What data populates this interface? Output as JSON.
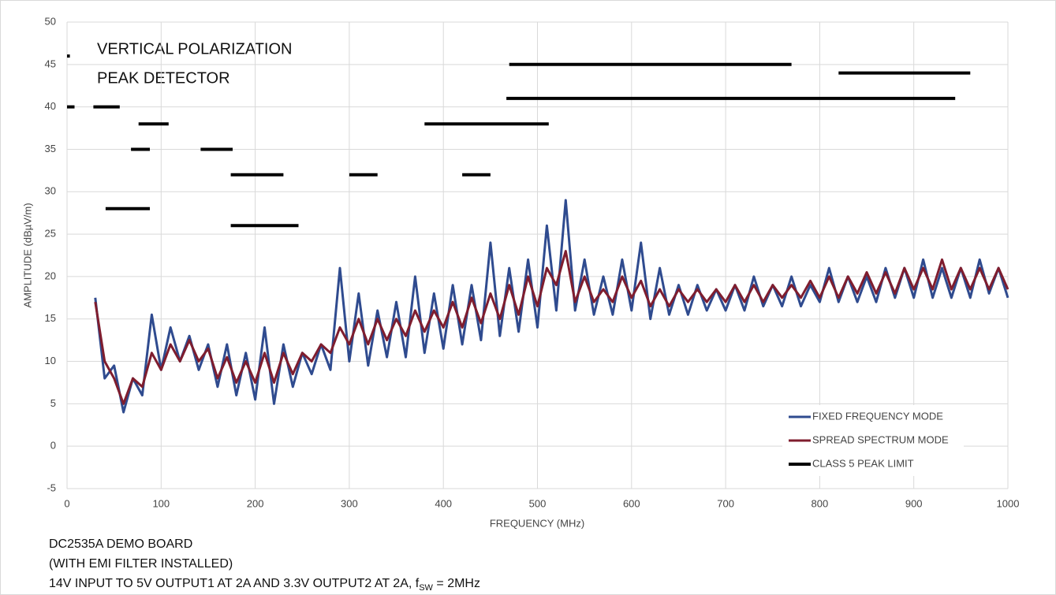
{
  "chart_data": {
    "type": "line",
    "annotation": [
      "VERTICAL POLARIZATION",
      "PEAK DETECTOR"
    ],
    "xlabel": "FREQUENCY (MHz)",
    "ylabel": "AMPLITUDE (dBµV/m)",
    "notes": [
      "DC2535A DEMO BOARD",
      "(WITH EMI FILTER INSTALLED)"
    ],
    "note_last": [
      "14V INPUT TO 5V OUTPUT1 AT 2A AND 3.3V OUTPUT2 AT 2A, f",
      "SW",
      " = 2MHz"
    ],
    "xlim": [
      0,
      1000
    ],
    "xticks": [
      0,
      100,
      200,
      300,
      400,
      500,
      600,
      700,
      800,
      900,
      1000
    ],
    "ylim": [
      -5,
      50
    ],
    "yticks": [
      -5,
      0,
      5,
      10,
      15,
      20,
      25,
      30,
      35,
      40,
      45,
      50
    ],
    "grid": true,
    "legend": "bottom-right",
    "series": [
      {
        "name": "FIXED FREQUENCY MODE",
        "color": "#2f4b8f",
        "width": 3,
        "x": [
          30,
          40,
          50,
          60,
          70,
          80,
          90,
          100,
          110,
          120,
          130,
          140,
          150,
          160,
          170,
          180,
          190,
          200,
          210,
          220,
          230,
          240,
          250,
          260,
          270,
          280,
          290,
          300,
          310,
          320,
          330,
          340,
          350,
          360,
          370,
          380,
          390,
          400,
          410,
          420,
          430,
          440,
          450,
          460,
          470,
          480,
          490,
          500,
          510,
          520,
          530,
          540,
          550,
          560,
          570,
          580,
          590,
          600,
          610,
          620,
          630,
          640,
          650,
          660,
          670,
          680,
          690,
          700,
          710,
          720,
          730,
          740,
          750,
          760,
          770,
          780,
          790,
          800,
          810,
          820,
          830,
          840,
          850,
          860,
          870,
          880,
          890,
          900,
          910,
          920,
          930,
          940,
          950,
          960,
          970,
          980,
          990,
          1000
        ],
        "values": [
          17.5,
          8,
          9.5,
          4,
          8,
          6,
          15.5,
          9,
          14,
          10,
          13,
          9,
          12,
          7,
          12,
          6,
          11,
          5.5,
          14,
          5,
          12,
          7,
          11,
          8.5,
          12,
          9,
          21,
          10,
          18,
          9.5,
          16,
          10.5,
          17,
          10.5,
          20,
          11,
          18,
          11.5,
          19,
          12,
          19,
          12.5,
          24,
          13,
          21,
          13.5,
          22,
          14,
          26,
          16,
          29,
          16,
          22,
          15.5,
          20,
          15.5,
          22,
          16,
          24,
          15,
          21,
          15.5,
          19,
          15.5,
          19,
          16,
          18.5,
          16,
          19,
          16,
          20,
          16.5,
          19,
          16.5,
          20,
          16.5,
          19,
          17,
          21,
          17,
          20,
          17,
          20,
          17,
          21,
          17.5,
          21,
          17.5,
          22,
          17.5,
          21,
          17.5,
          21,
          17.5,
          22,
          18,
          21,
          17.5
        ]
      },
      {
        "name": "SPREAD SPECTRUM MODE",
        "color": "#7f1d2e",
        "width": 3,
        "x": [
          30,
          40,
          50,
          60,
          70,
          80,
          90,
          100,
          110,
          120,
          130,
          140,
          150,
          160,
          170,
          180,
          190,
          200,
          210,
          220,
          230,
          240,
          250,
          260,
          270,
          280,
          290,
          300,
          310,
          320,
          330,
          340,
          350,
          360,
          370,
          380,
          390,
          400,
          410,
          420,
          430,
          440,
          450,
          460,
          470,
          480,
          490,
          500,
          510,
          520,
          530,
          540,
          550,
          560,
          570,
          580,
          590,
          600,
          610,
          620,
          630,
          640,
          650,
          660,
          670,
          680,
          690,
          700,
          710,
          720,
          730,
          740,
          750,
          760,
          770,
          780,
          790,
          800,
          810,
          820,
          830,
          840,
          850,
          860,
          870,
          880,
          890,
          900,
          910,
          920,
          930,
          940,
          950,
          960,
          970,
          980,
          990,
          1000
        ],
        "values": [
          17,
          10,
          8,
          5,
          8,
          7,
          11,
          9,
          12,
          10,
          12.5,
          10,
          11.5,
          8,
          10.5,
          7.5,
          10,
          7.5,
          11,
          7.5,
          11,
          8.5,
          11,
          10,
          12,
          11,
          14,
          12,
          15,
          12,
          15,
          12.5,
          15,
          13,
          16,
          13.5,
          16,
          14,
          17,
          14,
          17.5,
          14.5,
          18,
          15,
          19,
          15.5,
          20,
          16.5,
          21,
          19,
          23,
          17,
          20,
          17,
          18.5,
          17,
          20,
          17.5,
          19.5,
          16.5,
          18.5,
          16.5,
          18.5,
          17,
          18.5,
          17,
          18.5,
          17,
          19,
          17,
          19,
          17,
          19,
          17.5,
          19,
          17.5,
          19.5,
          17.5,
          20,
          17.5,
          20,
          18,
          20.5,
          18,
          20.5,
          18,
          21,
          18.5,
          21,
          18.5,
          22,
          18.5,
          21,
          18.5,
          21,
          18.5,
          21,
          18.5
        ]
      },
      {
        "name": "CLASS 5 PEAK LIMIT",
        "color": "#000000",
        "width": 4,
        "x": [
          0,
          3,
          null,
          0,
          8,
          null,
          28,
          56,
          null,
          41,
          88,
          null,
          68,
          88,
          null,
          76,
          108,
          null,
          142,
          176,
          null,
          174,
          230,
          null,
          174,
          246,
          null,
          300,
          330,
          null,
          380,
          512,
          null,
          420,
          450,
          null,
          467,
          944,
          null,
          470,
          770,
          null,
          820,
          960
        ],
        "values": [
          46,
          46,
          null,
          40,
          40,
          null,
          40,
          40,
          null,
          28,
          28,
          null,
          35,
          35,
          null,
          38,
          38,
          null,
          35,
          35,
          null,
          32,
          32,
          null,
          26,
          26,
          null,
          32,
          32,
          null,
          38,
          38,
          null,
          32,
          32,
          null,
          41,
          41,
          null,
          45,
          45,
          null,
          44,
          44
        ]
      }
    ]
  }
}
